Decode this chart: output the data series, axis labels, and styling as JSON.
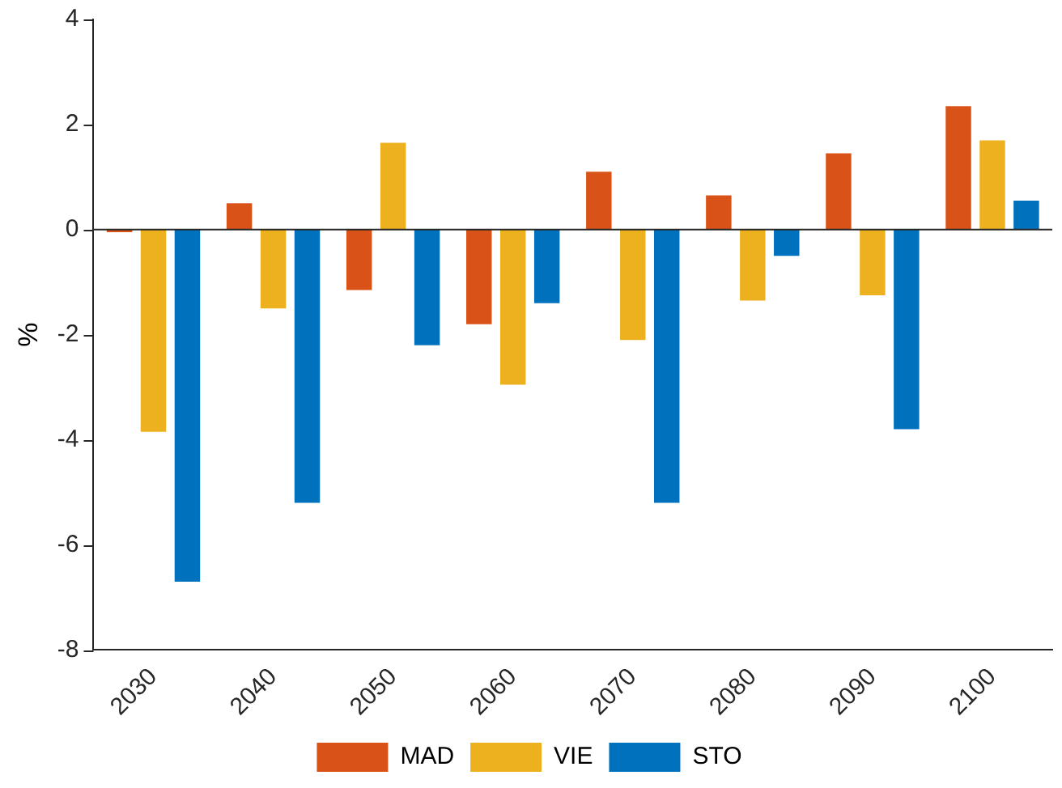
{
  "chart_data": {
    "type": "bar",
    "ylabel": "%",
    "categories": [
      "2030",
      "2040",
      "2050",
      "2060",
      "2070",
      "2080",
      "2090",
      "2100"
    ],
    "series": [
      {
        "name": "MAD",
        "color": "#d95319",
        "values": [
          -0.05,
          0.5,
          -1.15,
          -1.8,
          1.1,
          0.65,
          1.45,
          2.35
        ]
      },
      {
        "name": "VIE",
        "color": "#edb120",
        "values": [
          -3.85,
          -1.5,
          1.65,
          -2.95,
          -2.1,
          -1.35,
          -1.25,
          1.7
        ]
      },
      {
        "name": "STO",
        "color": "#0072bd",
        "values": [
          -6.7,
          -5.2,
          -2.2,
          -1.4,
          -5.2,
          -0.5,
          -3.8,
          0.55
        ]
      }
    ],
    "ylim": [
      -8,
      4
    ],
    "yticks": [
      -8,
      -6,
      -4,
      -2,
      0,
      2,
      4
    ],
    "grid": false,
    "ref_lines": [
      {
        "axis": "y",
        "value": 0,
        "color": "#262626"
      }
    ],
    "legend": "bottom"
  }
}
